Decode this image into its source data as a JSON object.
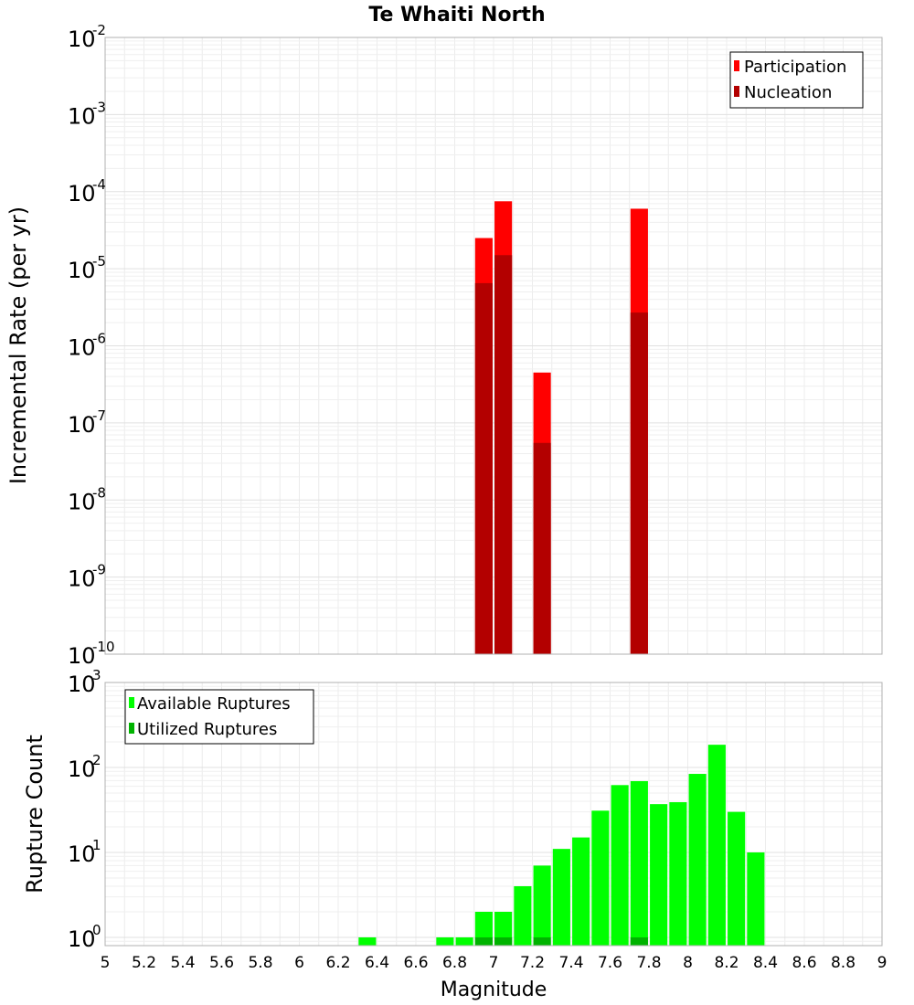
{
  "chart_data": [
    {
      "type": "bar",
      "title": "Te Whaiti North",
      "xlabel": "Magnitude",
      "ylabel": "Incremental Rate (per yr)",
      "yscale": "log",
      "ylim": [
        1e-10,
        0.01
      ],
      "xlim": [
        5,
        9
      ],
      "y_ticks": [
        {
          "base": "10",
          "exp": "-2"
        },
        {
          "base": "10",
          "exp": "-3"
        },
        {
          "base": "10",
          "exp": "-4"
        },
        {
          "base": "10",
          "exp": "-5"
        },
        {
          "base": "10",
          "exp": "-6"
        },
        {
          "base": "10",
          "exp": "-7"
        },
        {
          "base": "10",
          "exp": "-8"
        },
        {
          "base": "10",
          "exp": "-9"
        },
        {
          "base": "10",
          "exp": "-10"
        }
      ],
      "grid": true,
      "legend_position": "top-right",
      "bar_width": 0.09,
      "series": [
        {
          "name": "Participation",
          "color": "#ff0000",
          "x": [
            6.95,
            7.05,
            7.25,
            7.75
          ],
          "values": [
            2.5e-05,
            7.5e-05,
            4.5e-07,
            6e-05
          ]
        },
        {
          "name": "Nucleation",
          "color": "#b30000",
          "x": [
            6.95,
            7.05,
            7.25,
            7.75
          ],
          "values": [
            6.5e-06,
            1.5e-05,
            5.5e-08,
            2.7e-06
          ]
        }
      ]
    },
    {
      "type": "bar",
      "title": "",
      "xlabel": "Magnitude",
      "ylabel": "Rupture Count",
      "yscale": "log",
      "ylim": [
        0.8,
        1000
      ],
      "xlim": [
        5,
        9
      ],
      "y_ticks": [
        {
          "value": 1000,
          "base": "10",
          "exp": "3"
        },
        {
          "value": 100,
          "base": "10",
          "exp": "2"
        },
        {
          "value": 10,
          "base": "10",
          "exp": "1"
        },
        {
          "value": 1,
          "base": "10",
          "exp": "0"
        }
      ],
      "x_ticks": [
        "5",
        "5.2",
        "5.4",
        "5.6",
        "5.8",
        "6",
        "6.2",
        "6.4",
        "6.6",
        "6.8",
        "7",
        "7.2",
        "7.4",
        "7.6",
        "7.8",
        "8",
        "8.2",
        "8.4",
        "8.6",
        "8.8",
        "9"
      ],
      "grid": true,
      "legend_position": "top-left",
      "bar_width": 0.09,
      "series": [
        {
          "name": "Available Ruptures",
          "color": "#00ff00",
          "x": [
            6.35,
            6.75,
            6.85,
            6.95,
            7.05,
            7.15,
            7.25,
            7.35,
            7.45,
            7.55,
            7.65,
            7.75,
            7.85,
            7.95,
            8.05,
            8.15,
            8.25,
            8.35
          ],
          "values": [
            1,
            1,
            1,
            2,
            2,
            4,
            7,
            11,
            15,
            31,
            62,
            69,
            37,
            39,
            84,
            185,
            30,
            10
          ]
        },
        {
          "name": "Utilized Ruptures",
          "color": "#00b300",
          "x": [
            6.95,
            7.05,
            7.25,
            7.75
          ],
          "values": [
            1,
            1,
            1,
            1
          ]
        }
      ]
    }
  ]
}
